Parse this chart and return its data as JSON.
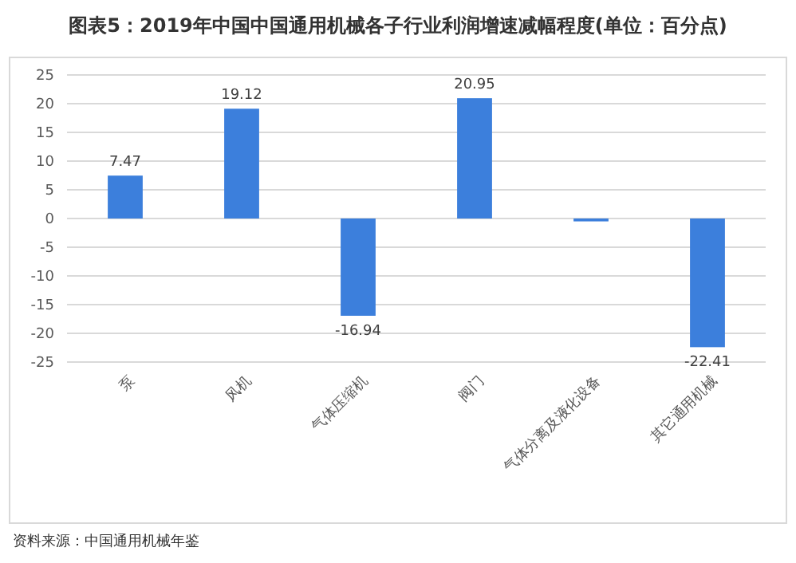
{
  "chart_data": {
    "type": "bar",
    "title": "图表5：2019年中国中国通用机械各子行业利润增速减幅程度(单位：百分点)",
    "categories": [
      "泵",
      "风机",
      "气体压缩机",
      "阀门",
      "气体分离及液化设备",
      "其它通用机械"
    ],
    "values": [
      7.47,
      19.12,
      -16.94,
      20.95,
      -0.5,
      -22.41
    ],
    "value_labels": [
      "7.47",
      "19.12",
      "-16.94",
      "20.95",
      null,
      "-22.41"
    ],
    "color": "#3c7fdc",
    "ylim": [
      -25,
      25
    ],
    "yticks": [
      -25,
      -20,
      -15,
      -10,
      -5,
      0,
      5,
      10,
      15,
      20,
      25
    ],
    "grid": "y",
    "annotations": [
      "资料来源：中国通用机械年鉴"
    ]
  }
}
